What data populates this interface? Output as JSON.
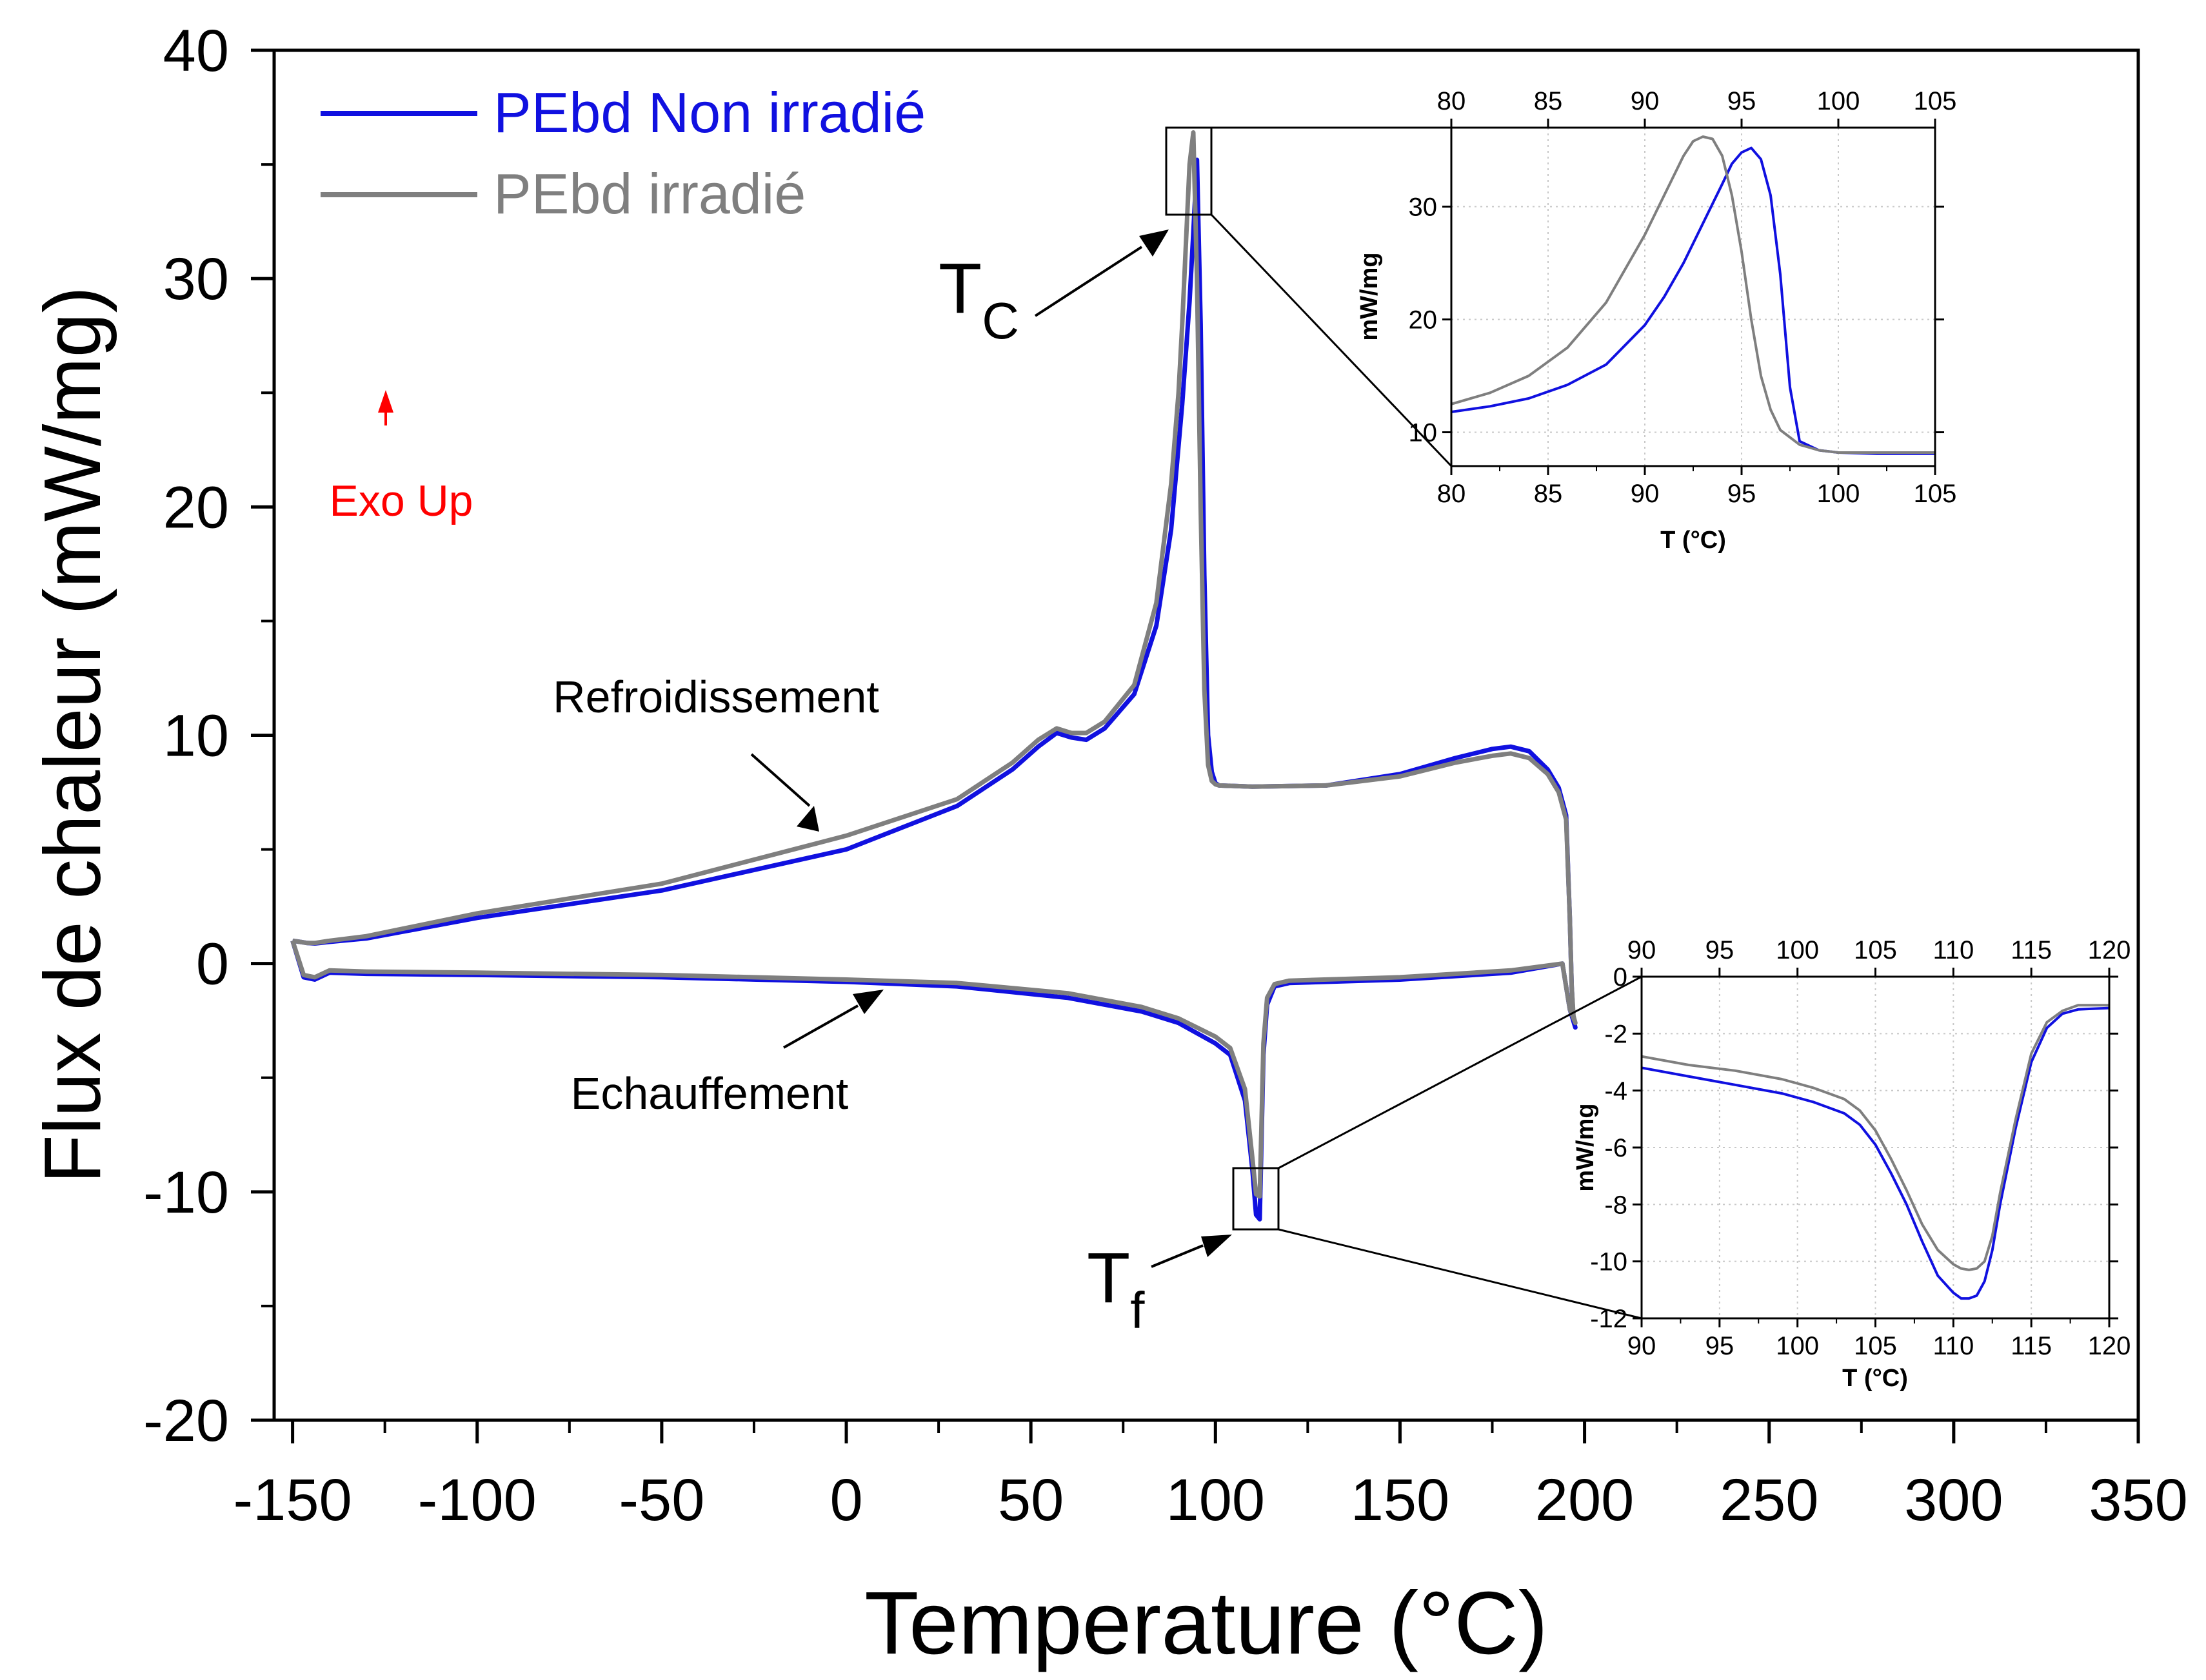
{
  "colors": {
    "series_blue": "#1010e0",
    "series_gray": "#7f7f7f",
    "annotation_red": "#ff0000",
    "axis": "#000000"
  },
  "chart_data": [
    {
      "id": "main",
      "type": "line",
      "xlabel": "Temperature (°C)",
      "ylabel": "Flux de chaleur (mW/mg)",
      "xlim": [
        -155,
        350
      ],
      "ylim": [
        -20,
        40
      ],
      "xticks": [
        -150,
        -100,
        -50,
        0,
        50,
        100,
        150,
        200,
        250,
        300,
        350
      ],
      "yticks": [
        -20,
        -10,
        0,
        10,
        20,
        30,
        40
      ],
      "legend": {
        "placement": "top-left"
      },
      "series": [
        {
          "name": "PEbd Non irradié",
          "color": "#1010e0",
          "x": [
            -150,
            -148,
            -146,
            -144,
            -140,
            -130,
            -100,
            -50,
            0,
            30,
            45,
            52,
            57,
            61,
            65,
            70,
            78,
            84,
            88,
            91,
            93,
            94,
            95,
            96,
            97,
            98,
            99,
            100,
            101,
            110,
            130,
            150,
            165,
            175,
            180,
            185,
            190,
            193,
            195,
            196,
            196.5,
            197,
            197.5,
            196,
            194,
            180,
            150,
            120,
            116,
            114,
            113,
            112,
            111,
            110,
            108,
            104,
            100,
            90,
            80,
            60,
            30,
            0,
            -50,
            -100,
            -130,
            -140,
            -144,
            -147,
            -150
          ],
          "y": [
            1.0,
            0.95,
            0.9,
            0.88,
            0.95,
            1.1,
            2.0,
            3.2,
            5.0,
            6.9,
            8.5,
            9.5,
            10.1,
            9.9,
            9.8,
            10.3,
            11.8,
            14.8,
            19,
            24.5,
            29,
            32,
            35.2,
            28,
            17,
            10,
            8.4,
            7.9,
            7.8,
            7.75,
            7.8,
            8.3,
            9.0,
            9.4,
            9.5,
            9.3,
            8.5,
            7.7,
            6.5,
            2.0,
            -1.0,
            -2.5,
            -2.8,
            -2.0,
            0.0,
            -0.4,
            -0.7,
            -0.85,
            -1.0,
            -1.8,
            -4.0,
            -11.2,
            -11.0,
            -9.0,
            -6.0,
            -4.0,
            -3.5,
            -2.6,
            -2.1,
            -1.5,
            -1.0,
            -0.8,
            -0.6,
            -0.5,
            -0.45,
            -0.4,
            -0.7,
            -0.6,
            1.0
          ]
        },
        {
          "name": "PEbd irradié",
          "color": "#7f7f7f",
          "x": [
            -150,
            -148,
            -146,
            -144,
            -140,
            -130,
            -100,
            -50,
            0,
            30,
            45,
            52,
            57,
            61,
            65,
            70,
            78,
            84,
            88,
            90,
            91,
            92,
            93,
            94,
            95,
            96,
            97,
            98,
            99,
            100,
            101,
            110,
            130,
            150,
            165,
            175,
            180,
            185,
            190,
            193,
            195,
            196,
            196.5,
            197,
            197.5,
            196,
            194,
            180,
            150,
            120,
            116,
            114,
            113,
            112,
            111,
            110,
            108,
            104,
            100,
            90,
            80,
            60,
            30,
            0,
            -50,
            -100,
            -130,
            -140,
            -144,
            -147,
            -150
          ],
          "y": [
            1.0,
            0.95,
            0.9,
            0.9,
            1.0,
            1.2,
            2.2,
            3.5,
            5.6,
            7.2,
            8.8,
            9.8,
            10.3,
            10.1,
            10.1,
            10.6,
            12.2,
            15.8,
            21,
            25,
            28,
            31.5,
            35,
            36.4,
            30,
            20,
            12,
            8.7,
            8.0,
            7.85,
            7.8,
            7.75,
            7.8,
            8.2,
            8.8,
            9.1,
            9.2,
            9.0,
            8.3,
            7.5,
            6.3,
            2.0,
            -1.0,
            -2.3,
            -2.6,
            -2.0,
            0.0,
            -0.3,
            -0.6,
            -0.75,
            -0.9,
            -1.5,
            -3.5,
            -10.2,
            -10.1,
            -8.5,
            -5.5,
            -3.7,
            -3.2,
            -2.4,
            -1.9,
            -1.3,
            -0.85,
            -0.7,
            -0.5,
            -0.4,
            -0.35,
            -0.3,
            -0.6,
            -0.5,
            1.0
          ]
        }
      ],
      "annotations": {
        "exo_up": "Exo Up",
        "cooling": "Refroidissement",
        "heating": "Echauffement",
        "tc_main": "T",
        "tc_sub": "C",
        "tf_main": "T",
        "tf_sub": "f"
      }
    },
    {
      "id": "inset_crystallization",
      "type": "line",
      "xlabel": "T (°C)",
      "ylabel": "mW/mg",
      "xlim": [
        80,
        105
      ],
      "ylim": [
        7,
        37
      ],
      "xticks": [
        80,
        85,
        90,
        95,
        100,
        105
      ],
      "yticks": [
        10,
        20,
        30
      ],
      "grid": true,
      "series": [
        {
          "name": "PEbd Non irradié",
          "color": "#1010e0",
          "x": [
            80,
            82,
            84,
            86,
            88,
            90,
            91,
            92,
            93,
            94,
            94.5,
            95,
            95.5,
            96,
            96.5,
            97,
            97.5,
            98,
            99,
            100,
            102,
            105
          ],
          "y": [
            11.8,
            12.3,
            13.0,
            14.2,
            16.0,
            19.5,
            22.0,
            25.0,
            28.5,
            32.0,
            33.8,
            34.8,
            35.2,
            34.2,
            31.0,
            24.0,
            14.0,
            9.2,
            8.4,
            8.2,
            8.1,
            8.1
          ]
        },
        {
          "name": "PEbd irradié",
          "color": "#7f7f7f",
          "x": [
            80,
            82,
            84,
            86,
            88,
            89,
            90,
            91,
            92,
            92.5,
            93,
            93.5,
            94,
            94.5,
            95,
            95.5,
            96,
            96.5,
            97,
            98,
            99,
            100,
            102,
            105
          ],
          "y": [
            12.5,
            13.5,
            15.0,
            17.5,
            21.5,
            24.5,
            27.5,
            31.0,
            34.5,
            35.8,
            36.2,
            36.0,
            34.5,
            31.0,
            26.0,
            20.0,
            15.0,
            12.0,
            10.2,
            8.9,
            8.4,
            8.2,
            8.2,
            8.2
          ]
        }
      ]
    },
    {
      "id": "inset_melting",
      "type": "line",
      "xlabel": "T (°C)",
      "ylabel": "mW/mg",
      "xlim": [
        90,
        120
      ],
      "ylim": [
        -12,
        0
      ],
      "xticks": [
        90,
        95,
        100,
        105,
        110,
        115,
        120
      ],
      "yticks": [
        -12,
        -10,
        -8,
        -6,
        -4,
        -2,
        0
      ],
      "grid": true,
      "series": [
        {
          "name": "PEbd Non irradié",
          "color": "#1010e0",
          "x": [
            90,
            93,
            96,
            99,
            101,
            103,
            104,
            105,
            106,
            107,
            108,
            109,
            110,
            110.5,
            111,
            111.5,
            112,
            112.5,
            113,
            114,
            115,
            116,
            117,
            118,
            120
          ],
          "y": [
            -3.2,
            -3.5,
            -3.8,
            -4.1,
            -4.4,
            -4.8,
            -5.2,
            -5.9,
            -6.9,
            -8.0,
            -9.3,
            -10.5,
            -11.1,
            -11.3,
            -11.3,
            -11.2,
            -10.7,
            -9.6,
            -8.0,
            -5.3,
            -3.0,
            -1.8,
            -1.3,
            -1.15,
            -1.1
          ]
        },
        {
          "name": "PEbd irradié",
          "color": "#7f7f7f",
          "x": [
            90,
            93,
            96,
            99,
            101,
            103,
            104,
            105,
            106,
            107,
            108,
            109,
            110,
            110.5,
            111,
            111.5,
            112,
            112.5,
            113,
            114,
            115,
            116,
            117,
            118,
            120
          ],
          "y": [
            -2.8,
            -3.1,
            -3.3,
            -3.6,
            -3.9,
            -4.3,
            -4.7,
            -5.4,
            -6.4,
            -7.5,
            -8.7,
            -9.6,
            -10.1,
            -10.25,
            -10.3,
            -10.25,
            -10.0,
            -9.1,
            -7.6,
            -5.0,
            -2.7,
            -1.6,
            -1.2,
            -1.0,
            -1.0
          ]
        }
      ]
    }
  ]
}
